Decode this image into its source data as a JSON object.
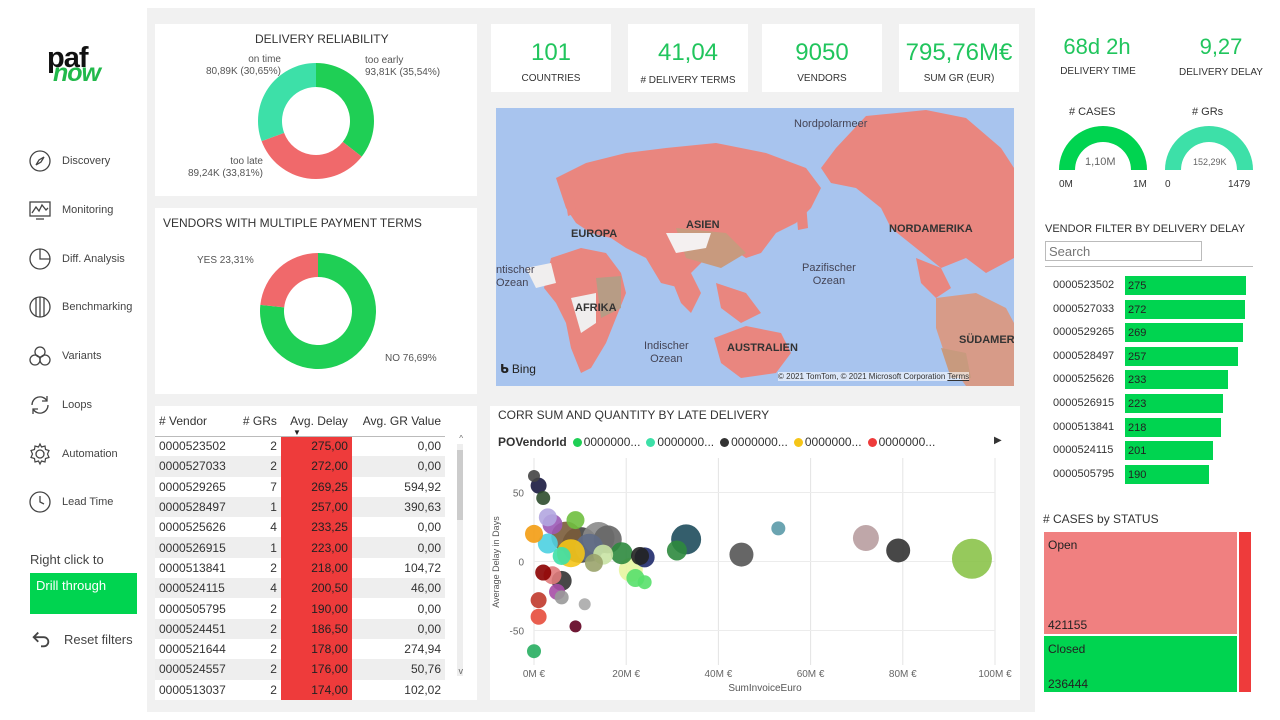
{
  "sidebar": {
    "logo_top": "paf",
    "logo_bottom": "now",
    "items": [
      {
        "label": "Discovery",
        "icon": "compass-icon"
      },
      {
        "label": "Monitoring",
        "icon": "monitor-chart-icon"
      },
      {
        "label": "Diff. Analysis",
        "icon": "pie-slice-icon"
      },
      {
        "label": "Benchmarking",
        "icon": "benchmark-icon"
      },
      {
        "label": "Variants",
        "icon": "variants-icon"
      },
      {
        "label": "Loops",
        "icon": "loop-icon"
      },
      {
        "label": "Automation",
        "icon": "gear-icon"
      },
      {
        "label": "Lead Time",
        "icon": "clock-icon"
      }
    ],
    "right_click_label": "Right click to",
    "drill_through_label": "Drill through",
    "reset_filters_label": "Reset filters"
  },
  "delivery_reliability": {
    "title": "DELIVERY RELIABILITY",
    "on_time_label": "on time",
    "on_time_value": "80,89K (30,65%)",
    "too_early_label": "too early",
    "too_early_value": "93,81K (35,54%)",
    "too_late_label": "too late",
    "too_late_value": "89,24K (33,81%)",
    "slices": [
      {
        "name": "too early",
        "fraction": 0.3554,
        "color": "#1fcf55"
      },
      {
        "name": "too late",
        "fraction": 0.3381,
        "color": "#f0696b"
      },
      {
        "name": "on time",
        "fraction": 0.3065,
        "color": "#3de0a8"
      }
    ]
  },
  "multi_payment": {
    "title": "VENDORS WITH MULTIPLE PAYMENT TERMS",
    "yes_label": "YES 23,31%",
    "no_label": "NO 76,69%",
    "slices": [
      {
        "name": "NO",
        "fraction": 0.7669,
        "color": "#1fcf55"
      },
      {
        "name": "YES",
        "fraction": 0.2331,
        "color": "#f0696b"
      }
    ]
  },
  "kpis": [
    {
      "value": "101",
      "label": "COUNTRIES"
    },
    {
      "value": "41,04",
      "label": "# DELIVERY TERMS"
    },
    {
      "value": "9050",
      "label": "VENDORS"
    },
    {
      "value": "795,76M€",
      "label": "SUM GR (EUR)"
    }
  ],
  "map": {
    "labels": {
      "north_sea": "Nordpolarmeer",
      "europe": "EUROPA",
      "asia": "ASIEN",
      "north_america": "NORDAMERIKA",
      "pacific": "Pazifischer\nOzean",
      "atlantic": "ntischer\nOzean",
      "africa": "AFRIKA",
      "indian": "Indischer\nOzean",
      "australia": "AUSTRALIEN",
      "south_america": "SÜDAMER"
    },
    "bing": "Bing",
    "copyright": "© 2021 TomTom, © 2021 Microsoft Corporation",
    "terms": "Terms"
  },
  "table": {
    "headers": [
      "# Vendor",
      "# GRs",
      "Avg. Delay",
      "Avg. GR Value"
    ],
    "rows": [
      [
        "0000523502",
        "2",
        "275,00",
        "0,00"
      ],
      [
        "0000527033",
        "2",
        "272,00",
        "0,00"
      ],
      [
        "0000529265",
        "7",
        "269,25",
        "594,92"
      ],
      [
        "0000528497",
        "1",
        "257,00",
        "390,63"
      ],
      [
        "0000525626",
        "4",
        "233,25",
        "0,00"
      ],
      [
        "0000526915",
        "1",
        "223,00",
        "0,00"
      ],
      [
        "0000513841",
        "2",
        "218,00",
        "104,72"
      ],
      [
        "0000524115",
        "4",
        "200,50",
        "46,00"
      ],
      [
        "0000505795",
        "2",
        "190,00",
        "0,00"
      ],
      [
        "0000524451",
        "2",
        "186,50",
        "0,00"
      ],
      [
        "0000521644",
        "2",
        "178,00",
        "274,94"
      ],
      [
        "0000524557",
        "2",
        "176,00",
        "50,76"
      ],
      [
        "0000513037",
        "2",
        "174,00",
        "102,02"
      ]
    ]
  },
  "scatter": {
    "title": "CORR SUM AND QUANTITY BY LATE DELIVERY",
    "legend_title": "POVendorId",
    "legend_items": [
      {
        "label": "0000000...",
        "color": "#1fcf55"
      },
      {
        "label": "0000000...",
        "color": "#3de0a8"
      },
      {
        "label": "0000000...",
        "color": "#333333"
      },
      {
        "label": "0000000...",
        "color": "#f5c518"
      },
      {
        "label": "0000000...",
        "color": "#ee3b3b"
      }
    ],
    "ylabel": "Average Delay in Days",
    "xlabel": "SumInvoiceEuro",
    "y_ticks": [
      "50",
      "0",
      "-50"
    ],
    "x_ticks": [
      "0M €",
      "20M €",
      "40M €",
      "60M €",
      "80M €",
      "100M €"
    ]
  },
  "chart_data": {
    "type": "scatter",
    "title": "CORR SUM AND QUANTITY BY LATE DELIVERY",
    "xlabel": "SumInvoiceEuro",
    "ylabel": "Average Delay in Days",
    "xlim": [
      0,
      100
    ],
    "ylim": [
      -75,
      75
    ],
    "points": [
      {
        "x": 95,
        "y": 2,
        "r": 20,
        "color": "#8bc34a"
      },
      {
        "x": 72,
        "y": 17,
        "r": 13,
        "color": "#b89da0"
      },
      {
        "x": 79,
        "y": 8,
        "r": 12,
        "color": "#333333"
      },
      {
        "x": 53,
        "y": 24,
        "r": 7,
        "color": "#5b9aa9"
      },
      {
        "x": 45,
        "y": 5,
        "r": 12,
        "color": "#555555"
      },
      {
        "x": 33,
        "y": 16,
        "r": 15,
        "color": "#1e4d5c"
      },
      {
        "x": 31,
        "y": 8,
        "r": 10,
        "color": "#2d8a3e"
      },
      {
        "x": 24,
        "y": 3,
        "r": 10,
        "color": "#1f2a6b"
      },
      {
        "x": 23,
        "y": 4,
        "r": 9,
        "color": "#222222"
      },
      {
        "x": 22,
        "y": -12,
        "r": 9,
        "color": "#58e06b"
      },
      {
        "x": 21,
        "y": -6,
        "r": 12,
        "color": "#e8f5a0"
      },
      {
        "x": 19,
        "y": 6,
        "r": 11,
        "color": "#2d8a3e"
      },
      {
        "x": 16,
        "y": 16,
        "r": 14,
        "color": "#666666"
      },
      {
        "x": 15,
        "y": 5,
        "r": 10,
        "color": "#c9e3a4"
      },
      {
        "x": 14,
        "y": 17,
        "r": 16,
        "color": "#8a8a8a"
      },
      {
        "x": 13,
        "y": -1,
        "r": 9,
        "color": "#9aa36b"
      },
      {
        "x": 12,
        "y": 10,
        "r": 14,
        "color": "#606d87"
      },
      {
        "x": 10,
        "y": 12,
        "r": 18,
        "color": "#444444"
      },
      {
        "x": 9,
        "y": 30,
        "r": 9,
        "color": "#6fbf3f"
      },
      {
        "x": 8,
        "y": 6,
        "r": 14,
        "color": "#f5c518"
      },
      {
        "x": 7,
        "y": 18,
        "r": 15,
        "color": "#7a5c3a"
      },
      {
        "x": 6,
        "y": -14,
        "r": 10,
        "color": "#333333"
      },
      {
        "x": 6,
        "y": 4,
        "r": 9,
        "color": "#3de0a8"
      },
      {
        "x": 5,
        "y": -22,
        "r": 8,
        "color": "#a64ca6"
      },
      {
        "x": 4,
        "y": 27,
        "r": 10,
        "color": "#9b59b6"
      },
      {
        "x": 4,
        "y": -10,
        "r": 9,
        "color": "#e07b7b"
      },
      {
        "x": 3,
        "y": 32,
        "r": 9,
        "color": "#b3a6e0"
      },
      {
        "x": 3,
        "y": 13,
        "r": 10,
        "color": "#4dd0e1"
      },
      {
        "x": 2,
        "y": -8,
        "r": 8,
        "color": "#8b0000"
      },
      {
        "x": 2,
        "y": 46,
        "r": 7,
        "color": "#2d4d2d"
      },
      {
        "x": 1,
        "y": -28,
        "r": 8,
        "color": "#c0392b"
      },
      {
        "x": 1,
        "y": -40,
        "r": 8,
        "color": "#e74c3c"
      },
      {
        "x": 1,
        "y": 55,
        "r": 8,
        "color": "#1a1a40"
      },
      {
        "x": 0,
        "y": 20,
        "r": 9,
        "color": "#f39c12"
      },
      {
        "x": 0,
        "y": -65,
        "r": 7,
        "color": "#27ae60"
      },
      {
        "x": 9,
        "y": -47,
        "r": 6,
        "color": "#600020"
      },
      {
        "x": 6,
        "y": -26,
        "r": 7,
        "color": "#999999"
      },
      {
        "x": 24,
        "y": -15,
        "r": 7,
        "color": "#58e06b"
      },
      {
        "x": 11,
        "y": -31,
        "r": 6,
        "color": "#aaaaaa"
      },
      {
        "x": 0,
        "y": 62,
        "r": 6,
        "color": "#444444"
      }
    ]
  },
  "right_panel": {
    "kpi_delivery_time_value": "68d 2h",
    "kpi_delivery_time_label": "DELIVERY TIME",
    "kpi_delivery_delay_value": "9,27",
    "kpi_delivery_delay_label": "DELIVERY DELAY",
    "gauge_cases": {
      "title": "# CASES",
      "value_label": "1,10M",
      "min": "0M",
      "max": "1M",
      "fraction": 1.0
    },
    "gauge_grs": {
      "title": "# GRs",
      "value_label": "152,29K",
      "min": "0",
      "max": "1479",
      "fraction": 1.0
    },
    "vendor_filter_title": "VENDOR FILTER BY DELIVERY DELAY",
    "search_placeholder": "Search",
    "vendor_bars": [
      {
        "id": "0000523502",
        "value": "275",
        "num": 275
      },
      {
        "id": "0000527033",
        "value": "272",
        "num": 272
      },
      {
        "id": "0000529265",
        "value": "269",
        "num": 269
      },
      {
        "id": "0000528497",
        "value": "257",
        "num": 257
      },
      {
        "id": "0000525626",
        "value": "233",
        "num": 233
      },
      {
        "id": "0000526915",
        "value": "223",
        "num": 223
      },
      {
        "id": "0000513841",
        "value": "218",
        "num": 218
      },
      {
        "id": "0000524115",
        "value": "201",
        "num": 201
      },
      {
        "id": "0000505795",
        "value": "190",
        "num": 190
      }
    ],
    "cases_status_title": "# CASES by STATUS",
    "open_label": "Open",
    "open_value": "421155",
    "closed_label": "Closed",
    "closed_value": "236444"
  }
}
